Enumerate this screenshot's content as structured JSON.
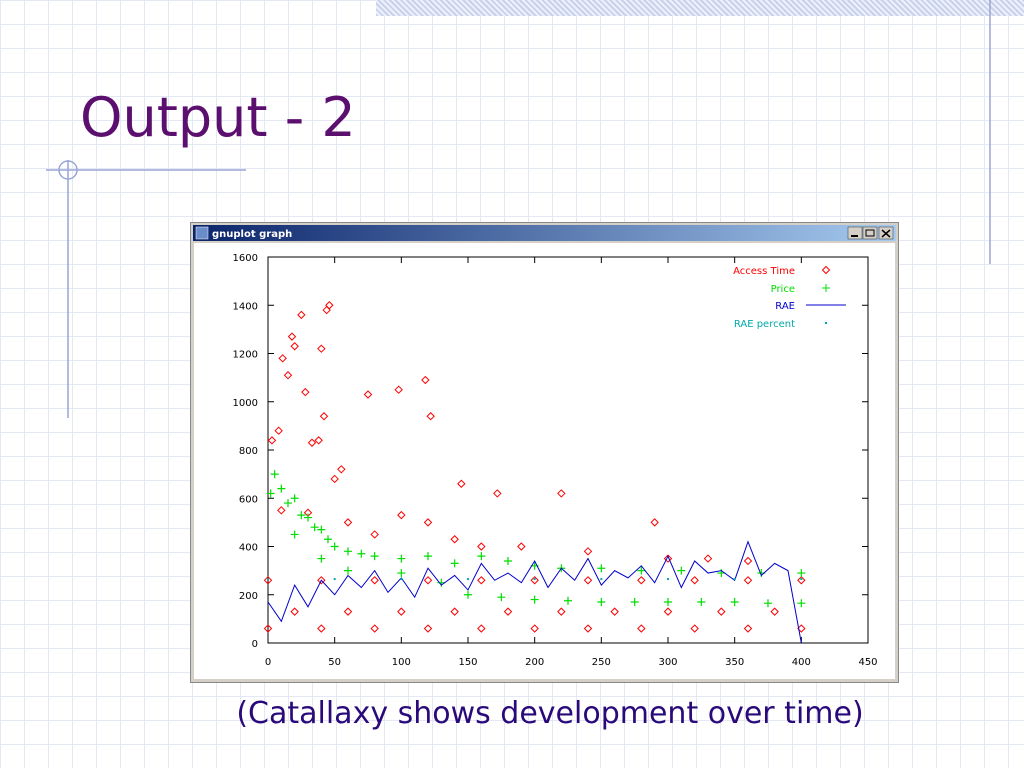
{
  "slide_title": "Output - 2",
  "caption": "(Catallaxy shows development over time)",
  "window_title": "gnuplot graph",
  "chart_data": {
    "type": "scatter",
    "xlim": [
      0,
      450
    ],
    "xticks": [
      0,
      50,
      100,
      150,
      200,
      250,
      300,
      350,
      400,
      450
    ],
    "ylim": [
      0,
      1600
    ],
    "yticks": [
      0,
      200,
      400,
      600,
      800,
      1000,
      1200,
      1400,
      1600
    ],
    "legend": "upper right",
    "series": [
      {
        "name": "Access Time",
        "color": "#ff0000",
        "marker": "diamond",
        "x": [
          3,
          8,
          11,
          15,
          18,
          20,
          25,
          28,
          33,
          38,
          40,
          42,
          44,
          46,
          50,
          55,
          75,
          98,
          118,
          122,
          145,
          172,
          220,
          290,
          10,
          30,
          60,
          80,
          100,
          120,
          140,
          160,
          190,
          240,
          300,
          330,
          360,
          0,
          40,
          80,
          120,
          160,
          200,
          240,
          280,
          320,
          360,
          400,
          20,
          60,
          100,
          140,
          180,
          220,
          260,
          300,
          340,
          380,
          0,
          40,
          80,
          120,
          160,
          200,
          240,
          280,
          320,
          360,
          400
        ],
        "values": [
          840,
          880,
          1180,
          1110,
          1270,
          1230,
          1360,
          1040,
          830,
          840,
          1220,
          940,
          1380,
          1400,
          680,
          720,
          1030,
          1050,
          1090,
          940,
          660,
          620,
          620,
          500,
          550,
          540,
          500,
          450,
          530,
          500,
          430,
          400,
          400,
          380,
          350,
          350,
          340,
          260,
          260,
          260,
          260,
          260,
          260,
          260,
          260,
          260,
          260,
          260,
          130,
          130,
          130,
          130,
          130,
          130,
          130,
          130,
          130,
          130,
          60,
          60,
          60,
          60,
          60,
          60,
          60,
          60,
          60,
          60,
          60
        ]
      },
      {
        "name": "Price",
        "color": "#00dd00",
        "marker": "plus",
        "x": [
          2,
          5,
          10,
          15,
          20,
          25,
          30,
          35,
          40,
          45,
          50,
          60,
          70,
          80,
          100,
          120,
          140,
          160,
          180,
          200,
          220,
          250,
          280,
          310,
          340,
          370,
          400,
          150,
          175,
          200,
          225,
          250,
          275,
          300,
          325,
          350,
          375,
          400,
          20,
          40,
          60,
          100,
          130
        ],
        "values": [
          620,
          700,
          640,
          580,
          600,
          530,
          520,
          480,
          470,
          430,
          400,
          380,
          370,
          360,
          350,
          360,
          330,
          360,
          340,
          320,
          310,
          310,
          300,
          300,
          290,
          290,
          290,
          200,
          190,
          180,
          175,
          170,
          170,
          170,
          170,
          170,
          165,
          165,
          450,
          350,
          300,
          290,
          250
        ]
      },
      {
        "name": "RAE",
        "color": "#0000cc",
        "marker": "line",
        "x": [
          0,
          10,
          20,
          30,
          40,
          50,
          60,
          70,
          80,
          90,
          100,
          110,
          120,
          130,
          140,
          150,
          160,
          170,
          180,
          190,
          200,
          210,
          220,
          230,
          240,
          250,
          260,
          270,
          280,
          290,
          300,
          310,
          320,
          330,
          340,
          350,
          360,
          370,
          380,
          390,
          400
        ],
        "values": [
          170,
          90,
          240,
          150,
          260,
          200,
          280,
          230,
          300,
          210,
          270,
          190,
          310,
          240,
          280,
          220,
          330,
          260,
          290,
          250,
          340,
          230,
          310,
          260,
          350,
          240,
          300,
          270,
          320,
          250,
          360,
          230,
          340,
          290,
          300,
          260,
          420,
          280,
          330,
          300,
          0
        ]
      },
      {
        "name": "RAE percent",
        "color": "#00aaaa",
        "marker": "dot",
        "x": [
          0,
          50,
          100,
          150,
          200,
          250,
          300,
          350,
          400
        ],
        "values": [
          265,
          265,
          265,
          265,
          265,
          265,
          265,
          265,
          265
        ]
      }
    ]
  }
}
